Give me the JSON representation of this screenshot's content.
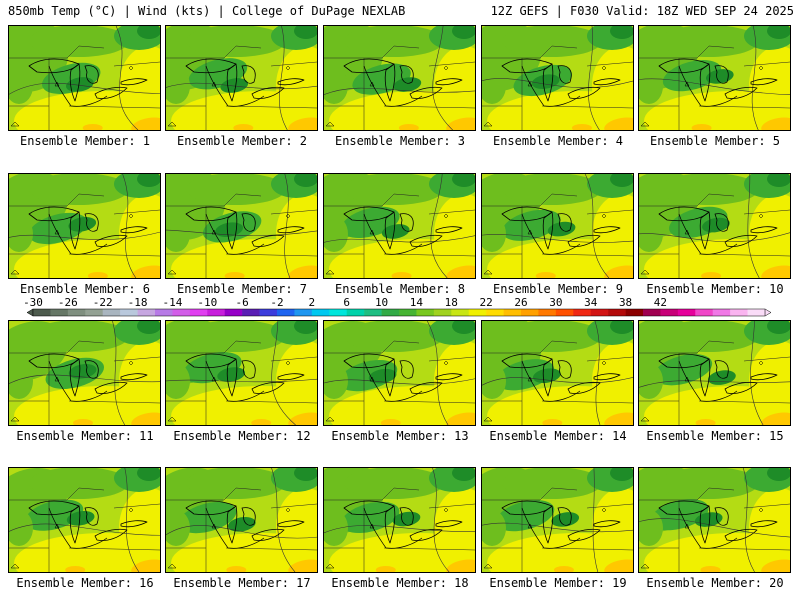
{
  "header": {
    "left": "850mb Temp (°C) | Wind (kts) | College of DuPage NEXLAB",
    "right": "12Z GEFS | F030 Valid: 18Z WED SEP 24 2025"
  },
  "panel_label_prefix": "Ensemble Member:",
  "members": [
    {
      "number": "1"
    },
    {
      "number": "2"
    },
    {
      "number": "3"
    },
    {
      "number": "4"
    },
    {
      "number": "5"
    },
    {
      "number": "6"
    },
    {
      "number": "7"
    },
    {
      "number": "8"
    },
    {
      "number": "9"
    },
    {
      "number": "10"
    },
    {
      "number": "11"
    },
    {
      "number": "12"
    },
    {
      "number": "13"
    },
    {
      "number": "14"
    },
    {
      "number": "15"
    },
    {
      "number": "16"
    },
    {
      "number": "17"
    },
    {
      "number": "18"
    },
    {
      "number": "19"
    },
    {
      "number": "20"
    }
  ],
  "colorbar": {
    "tick_labels": [
      "-30",
      "-26",
      "-22",
      "-18",
      "-14",
      "-10",
      "-6",
      "-2",
      "2",
      "6",
      "10",
      "14",
      "18",
      "22",
      "26",
      "30",
      "34",
      "38",
      "42"
    ],
    "colors": [
      "#4d5b4d",
      "#667766",
      "#7f8f7f",
      "#93a193",
      "#a9b5bf",
      "#b9c8dc",
      "#c6a6e0",
      "#b77ae6",
      "#d25ee8",
      "#e03ef0",
      "#c81edc",
      "#9600c8",
      "#5a1eb4",
      "#3c3cdc",
      "#1e64f0",
      "#1e96f0",
      "#00c8f0",
      "#00e6dc",
      "#00d2aa",
      "#1ebe82",
      "#32aa46",
      "#46b432",
      "#78c81e",
      "#a0d21e",
      "#c8e614",
      "#f0f000",
      "#ffdc00",
      "#ffbe00",
      "#ffa000",
      "#ff7800",
      "#ff5000",
      "#f02814",
      "#d21414",
      "#b40a0a",
      "#8c0000",
      "#a00050",
      "#c80078",
      "#e6009b",
      "#f046c8",
      "#f078e6",
      "#fab4f0",
      "#fadcf8"
    ]
  },
  "map_colors": {
    "green_dark": "#1e8c28",
    "green": "#3caa32",
    "green_mid": "#6ebe1e",
    "yellow_green": "#b4dc14",
    "yellow": "#f0f000",
    "orange": "#ffc800"
  }
}
